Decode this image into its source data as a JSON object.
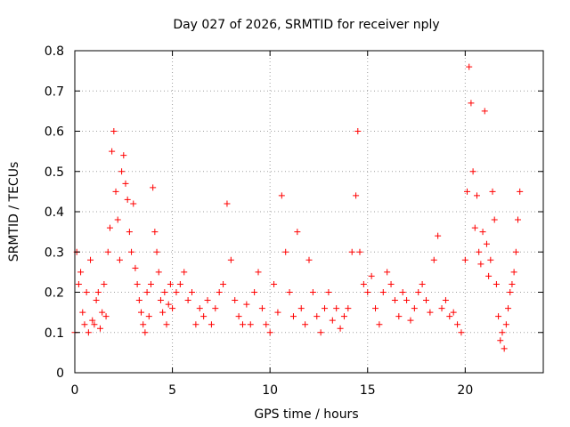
{
  "chart_data": {
    "type": "scatter",
    "title": "Day 027 of 2026, SRMTID for receiver nply",
    "xlabel": "GPS time / hours",
    "ylabel": "SRMTID / TECUs",
    "xlim": [
      0,
      24
    ],
    "ylim": [
      0,
      0.8
    ],
    "xticks": [
      0,
      5,
      10,
      15,
      20
    ],
    "yticks": [
      0,
      0.1,
      0.2,
      0.3,
      0.4,
      0.5,
      0.6,
      0.7,
      0.8
    ],
    "grid": true,
    "marker": "plus",
    "color": "#ff0000",
    "series": [
      {
        "name": "SRMTID",
        "x": [
          0.0,
          0.1,
          0.2,
          0.3,
          0.4,
          0.5,
          0.6,
          0.7,
          0.8,
          0.9,
          1.0,
          1.1,
          1.2,
          1.3,
          1.4,
          1.5,
          1.6,
          1.7,
          1.8,
          1.9,
          2.0,
          2.1,
          2.2,
          2.3,
          2.4,
          2.5,
          2.6,
          2.7,
          2.8,
          2.9,
          3.0,
          3.1,
          3.2,
          3.3,
          3.4,
          3.5,
          3.6,
          3.7,
          3.8,
          3.9,
          4.0,
          4.1,
          4.2,
          4.3,
          4.4,
          4.5,
          4.6,
          4.7,
          4.8,
          4.9,
          5.0,
          5.2,
          5.4,
          5.6,
          5.8,
          6.0,
          6.2,
          6.4,
          6.6,
          6.8,
          7.0,
          7.2,
          7.4,
          7.6,
          7.8,
          8.0,
          8.2,
          8.4,
          8.6,
          8.8,
          9.0,
          9.2,
          9.4,
          9.6,
          9.8,
          10.0,
          10.2,
          10.4,
          10.6,
          10.8,
          11.0,
          11.2,
          11.4,
          11.6,
          11.8,
          12.0,
          12.2,
          12.4,
          12.6,
          12.8,
          13.0,
          13.2,
          13.4,
          13.6,
          13.8,
          14.0,
          14.2,
          14.4,
          14.5,
          14.6,
          14.8,
          15.0,
          15.2,
          15.4,
          15.6,
          15.8,
          16.0,
          16.2,
          16.4,
          16.6,
          16.8,
          17.0,
          17.2,
          17.4,
          17.6,
          17.8,
          18.0,
          18.2,
          18.4,
          18.6,
          18.8,
          19.0,
          19.2,
          19.4,
          19.6,
          19.8,
          20.0,
          20.1,
          20.2,
          20.3,
          20.4,
          20.5,
          20.6,
          20.7,
          20.8,
          20.9,
          21.0,
          21.1,
          21.2,
          21.3,
          21.4,
          21.5,
          21.6,
          21.7,
          21.8,
          21.9,
          22.0,
          22.1,
          22.2,
          22.3,
          22.4,
          22.5,
          22.6,
          22.7,
          22.8
        ],
        "y": [
          0.1,
          0.3,
          0.22,
          0.25,
          0.15,
          0.12,
          0.2,
          0.1,
          0.28,
          0.13,
          0.12,
          0.18,
          0.2,
          0.11,
          0.15,
          0.22,
          0.14,
          0.3,
          0.36,
          0.55,
          0.6,
          0.45,
          0.38,
          0.28,
          0.5,
          0.54,
          0.47,
          0.43,
          0.35,
          0.3,
          0.42,
          0.26,
          0.22,
          0.18,
          0.15,
          0.12,
          0.1,
          0.2,
          0.14,
          0.22,
          0.46,
          0.35,
          0.3,
          0.25,
          0.18,
          0.15,
          0.2,
          0.12,
          0.17,
          0.22,
          0.16,
          0.2,
          0.22,
          0.25,
          0.18,
          0.2,
          0.12,
          0.16,
          0.14,
          0.18,
          0.12,
          0.16,
          0.2,
          0.22,
          0.42,
          0.28,
          0.18,
          0.14,
          0.12,
          0.17,
          0.12,
          0.2,
          0.25,
          0.16,
          0.12,
          0.1,
          0.22,
          0.15,
          0.44,
          0.3,
          0.2,
          0.14,
          0.35,
          0.16,
          0.12,
          0.28,
          0.2,
          0.14,
          0.1,
          0.16,
          0.2,
          0.13,
          0.16,
          0.11,
          0.14,
          0.16,
          0.3,
          0.44,
          0.6,
          0.3,
          0.22,
          0.2,
          0.24,
          0.16,
          0.12,
          0.2,
          0.25,
          0.22,
          0.18,
          0.14,
          0.2,
          0.18,
          0.13,
          0.16,
          0.2,
          0.22,
          0.18,
          0.15,
          0.28,
          0.34,
          0.16,
          0.18,
          0.14,
          0.15,
          0.12,
          0.1,
          0.28,
          0.45,
          0.76,
          0.67,
          0.5,
          0.36,
          0.44,
          0.3,
          0.27,
          0.35,
          0.65,
          0.32,
          0.24,
          0.28,
          0.45,
          0.38,
          0.22,
          0.14,
          0.08,
          0.1,
          0.06,
          0.12,
          0.16,
          0.2,
          0.22,
          0.25,
          0.3,
          0.38,
          0.45
        ]
      }
    ]
  }
}
